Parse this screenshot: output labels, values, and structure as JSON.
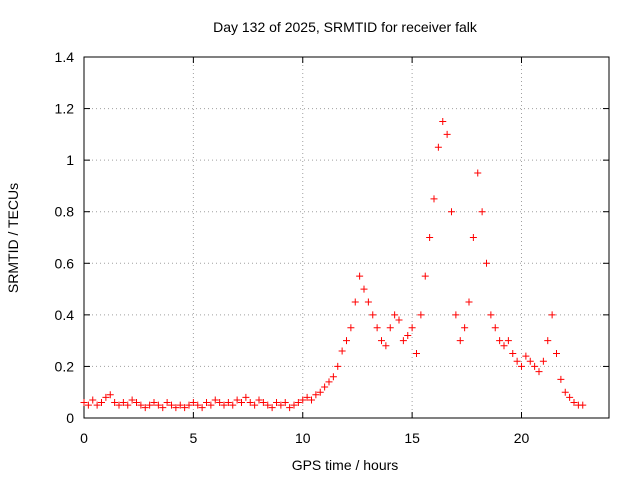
{
  "chart_data": {
    "type": "scatter",
    "title": "Day 132 of 2025, SRMTID for receiver falk",
    "xlabel": "GPS time / hours",
    "ylabel": "SRMTID / TECUs",
    "xlim": [
      0,
      24
    ],
    "ylim": [
      0,
      1.4
    ],
    "grid": true,
    "marker": "+",
    "series_color": "#ff0000",
    "x_ticks": [
      0,
      5,
      10,
      15,
      20
    ],
    "x_tick_labels": [
      "0",
      "5",
      "10",
      "15",
      "20"
    ],
    "y_ticks": [
      0,
      0.2,
      0.4,
      0.6,
      0.8,
      1.0,
      1.2,
      1.4
    ],
    "y_tick_labels": [
      "0",
      "0.2",
      "0.4",
      "0.6",
      "0.8",
      "1",
      "1.2",
      "1.4"
    ],
    "series": [
      {
        "name": "SRMTID",
        "x": [
          0.0,
          0.2,
          0.4,
          0.6,
          0.8,
          1.0,
          1.2,
          1.4,
          1.6,
          1.8,
          2.0,
          2.2,
          2.4,
          2.6,
          2.8,
          3.0,
          3.2,
          3.4,
          3.6,
          3.8,
          4.0,
          4.2,
          4.4,
          4.6,
          4.8,
          5.0,
          5.2,
          5.4,
          5.6,
          5.8,
          6.0,
          6.2,
          6.4,
          6.6,
          6.8,
          7.0,
          7.2,
          7.4,
          7.6,
          7.8,
          8.0,
          8.2,
          8.4,
          8.6,
          8.8,
          9.0,
          9.2,
          9.4,
          9.6,
          9.8,
          10.0,
          10.2,
          10.4,
          10.6,
          10.8,
          11.0,
          11.2,
          11.4,
          11.6,
          11.8,
          12.0,
          12.2,
          12.4,
          12.6,
          12.8,
          13.0,
          13.2,
          13.4,
          13.6,
          13.8,
          14.0,
          14.2,
          14.4,
          14.6,
          14.8,
          15.0,
          15.2,
          15.4,
          15.6,
          15.8,
          16.0,
          16.2,
          16.4,
          16.6,
          16.8,
          17.0,
          17.2,
          17.4,
          17.6,
          17.8,
          18.0,
          18.2,
          18.4,
          18.6,
          18.8,
          19.0,
          19.2,
          19.4,
          19.6,
          19.8,
          20.0,
          20.2,
          20.4,
          20.6,
          20.8,
          21.0,
          21.2,
          21.4,
          21.6,
          21.8,
          22.0,
          22.2,
          22.4,
          22.6,
          22.8
        ],
        "y": [
          0.06,
          0.05,
          0.07,
          0.05,
          0.06,
          0.08,
          0.09,
          0.06,
          0.05,
          0.06,
          0.05,
          0.07,
          0.06,
          0.05,
          0.04,
          0.05,
          0.06,
          0.05,
          0.04,
          0.06,
          0.05,
          0.04,
          0.05,
          0.04,
          0.05,
          0.06,
          0.05,
          0.04,
          0.06,
          0.05,
          0.07,
          0.06,
          0.05,
          0.06,
          0.05,
          0.07,
          0.06,
          0.08,
          0.06,
          0.05,
          0.07,
          0.06,
          0.05,
          0.04,
          0.06,
          0.05,
          0.06,
          0.04,
          0.05,
          0.06,
          0.07,
          0.08,
          0.07,
          0.09,
          0.1,
          0.12,
          0.14,
          0.16,
          0.2,
          0.26,
          0.3,
          0.35,
          0.45,
          0.55,
          0.5,
          0.45,
          0.4,
          0.35,
          0.3,
          0.28,
          0.35,
          0.4,
          0.38,
          0.3,
          0.32,
          0.35,
          0.25,
          0.4,
          0.55,
          0.7,
          0.85,
          1.05,
          1.15,
          1.1,
          0.8,
          0.4,
          0.3,
          0.35,
          0.45,
          0.7,
          0.95,
          0.8,
          0.6,
          0.4,
          0.35,
          0.3,
          0.28,
          0.3,
          0.25,
          0.22,
          0.2,
          0.24,
          0.22,
          0.2,
          0.18,
          0.22,
          0.3,
          0.4,
          0.25,
          0.15,
          0.1,
          0.08,
          0.06,
          0.05,
          0.05
        ]
      }
    ]
  }
}
